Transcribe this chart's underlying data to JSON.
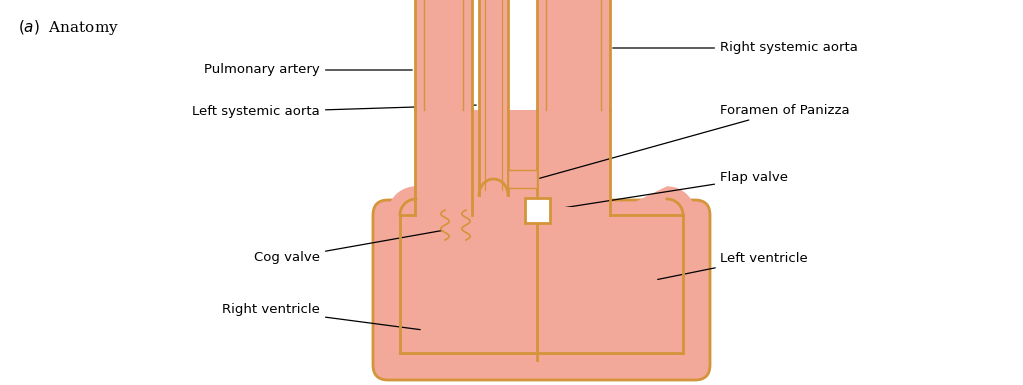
{
  "title": "(a)  Anatomy",
  "bg_color": "#ffffff",
  "fill_color": "#f2a99a",
  "border_color": "#d4943a",
  "text_color": "#000000",
  "labels": {
    "pulmonary_artery": "Pulmonary artery",
    "left_systemic_aorta": "Left systemic aorta",
    "right_systemic_aorta": "Right systemic aorta",
    "foramen_of_panizza": "Foramen of Panizza",
    "flap_valve": "Flap valve",
    "cog_valve": "Cog valve",
    "right_ventricle": "Right ventricle",
    "left_ventricle": "Left ventricle"
  },
  "figsize": [
    10.23,
    3.85
  ],
  "dpi": 100
}
